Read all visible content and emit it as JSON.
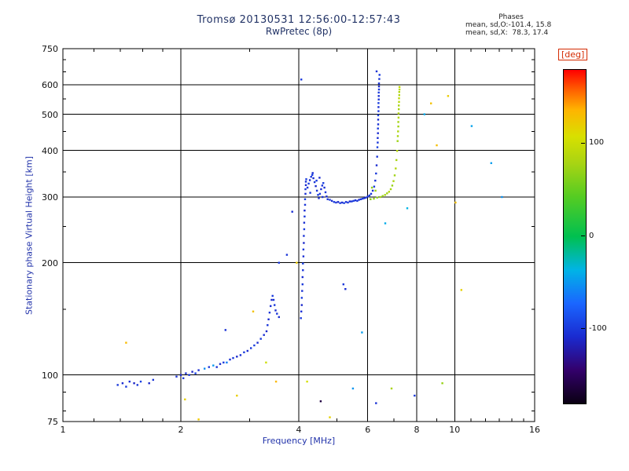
{
  "colors": {
    "background": "#ffffff",
    "axis": "#000000",
    "tick_text": "#101010",
    "title_text": "#223366",
    "axis_label_text": "#2233aa",
    "stats_text": "#202020",
    "deg_label": "#d42a00"
  },
  "chart_data": {
    "type": "scatter",
    "title": "Tromsø 20130531 12:56:00-12:57:43",
    "subtitle": "RwPretec (8p)",
    "stats": {
      "heading": "Phases",
      "line_o": "mean, sd,O:-101.4, 15.8",
      "line_x": "mean, sd,X:  78.3, 17.4"
    },
    "xlabel": "Frequency [MHz]",
    "ylabel": "Stationary phase Virtual Height [km]",
    "xscale": "log",
    "yscale": "log",
    "xlim": [
      1,
      16
    ],
    "ylim": [
      75,
      750
    ],
    "xticks": [
      1,
      2,
      4,
      6,
      8,
      10,
      16
    ],
    "x_gridlines": [
      2,
      4,
      6,
      8,
      10
    ],
    "x_minor_ticks": [
      1.2,
      1.4,
      1.6,
      1.8,
      3,
      5,
      7,
      9,
      11,
      12,
      13,
      14,
      15
    ],
    "yticks": [
      75,
      100,
      200,
      300,
      400,
      500,
      600,
      750
    ],
    "y_gridlines": [
      100,
      200,
      300,
      400,
      500,
      600
    ],
    "y_minor_ticks": [
      80,
      90,
      150,
      250,
      350,
      450,
      550,
      650,
      700
    ],
    "grid": true,
    "legend": "none",
    "colorbar": {
      "label": "[deg]",
      "ticks": [
        100,
        0,
        -100
      ],
      "range": [
        -180,
        180
      ],
      "position": "right"
    },
    "colormap": [
      [
        0.0,
        "#0a0012"
      ],
      [
        0.1,
        "#33006b"
      ],
      [
        0.2,
        "#1a2bd0"
      ],
      [
        0.3,
        "#1a66ff"
      ],
      [
        0.4,
        "#00b4e6"
      ],
      [
        0.5,
        "#00c050"
      ],
      [
        0.62,
        "#55cc22"
      ],
      [
        0.72,
        "#a8d413"
      ],
      [
        0.8,
        "#d8e000"
      ],
      [
        0.88,
        "#ffb400"
      ],
      [
        0.94,
        "#ff6000"
      ],
      [
        1.0,
        "#ff0000"
      ]
    ],
    "point_format": [
      "frequency_MHz",
      "virtual_height_km",
      "phase_deg"
    ],
    "points": [
      [
        1.38,
        94,
        -100
      ],
      [
        1.42,
        95,
        -108
      ],
      [
        1.45,
        93,
        -98
      ],
      [
        1.48,
        96,
        -105
      ],
      [
        1.52,
        95,
        -112
      ],
      [
        1.55,
        94,
        -100
      ],
      [
        1.58,
        96,
        -95
      ],
      [
        1.66,
        95,
        -110
      ],
      [
        1.7,
        97,
        -102
      ],
      [
        1.95,
        99,
        -104
      ],
      [
        2.0,
        100,
        -110
      ],
      [
        2.03,
        98,
        -98
      ],
      [
        2.06,
        101,
        -106
      ],
      [
        2.1,
        100,
        -100
      ],
      [
        2.14,
        102,
        -112
      ],
      [
        2.18,
        101,
        -95
      ],
      [
        2.22,
        103,
        -105
      ],
      [
        2.3,
        104,
        -55
      ],
      [
        2.36,
        105,
        -100
      ],
      [
        2.42,
        106,
        -48
      ],
      [
        2.47,
        105,
        -104
      ],
      [
        2.52,
        107,
        -110
      ],
      [
        2.57,
        108,
        -98
      ],
      [
        2.62,
        108,
        -60
      ],
      [
        2.67,
        110,
        -106
      ],
      [
        2.72,
        111,
        -100
      ],
      [
        2.78,
        112,
        -110
      ],
      [
        2.84,
        113,
        -104
      ],
      [
        2.9,
        115,
        -98
      ],
      [
        2.96,
        116,
        -108
      ],
      [
        3.02,
        118,
        -102
      ],
      [
        3.08,
        120,
        -96
      ],
      [
        3.14,
        122,
        -108
      ],
      [
        3.2,
        125,
        -100
      ],
      [
        3.26,
        128,
        -106
      ],
      [
        3.31,
        131,
        -110
      ],
      [
        3.33,
        136,
        -102
      ],
      [
        3.35,
        141,
        -108
      ],
      [
        3.37,
        147,
        -100
      ],
      [
        3.39,
        153,
        -105
      ],
      [
        3.41,
        159,
        -110
      ],
      [
        3.43,
        163,
        -98
      ],
      [
        3.45,
        159,
        -104
      ],
      [
        3.47,
        154,
        -100
      ],
      [
        3.49,
        149,
        -108
      ],
      [
        3.52,
        146,
        -102
      ],
      [
        3.56,
        143,
        -106
      ],
      [
        4.05,
        142,
        -100
      ],
      [
        4.06,
        148,
        -106
      ],
      [
        4.07,
        154,
        -110
      ],
      [
        4.07,
        161,
        -98
      ],
      [
        4.08,
        168,
        -104
      ],
      [
        4.09,
        175,
        -100
      ],
      [
        4.09,
        183,
        -108
      ],
      [
        4.1,
        191,
        -102
      ],
      [
        4.1,
        199,
        -96
      ],
      [
        4.11,
        208,
        -106
      ],
      [
        4.11,
        217,
        -100
      ],
      [
        4.12,
        226,
        -110
      ],
      [
        4.12,
        236,
        -104
      ],
      [
        4.13,
        246,
        -98
      ],
      [
        4.13,
        256,
        -106
      ],
      [
        4.14,
        266,
        -100
      ],
      [
        4.14,
        276,
        -108
      ],
      [
        4.15,
        286,
        -102
      ],
      [
        4.15,
        296,
        -96
      ],
      [
        4.16,
        306,
        -106
      ],
      [
        4.16,
        315,
        -100
      ],
      [
        4.17,
        323,
        -108
      ],
      [
        4.17,
        330,
        -102
      ],
      [
        4.18,
        335,
        -98
      ],
      [
        4.21,
        318,
        -104
      ],
      [
        4.24,
        326,
        -98
      ],
      [
        4.27,
        333,
        -108
      ],
      [
        4.3,
        340,
        -102
      ],
      [
        4.33,
        344,
        -96
      ],
      [
        4.36,
        337,
        -106
      ],
      [
        4.39,
        329,
        -100
      ],
      [
        4.42,
        321,
        -110
      ],
      [
        4.45,
        312,
        -104
      ],
      [
        4.48,
        304,
        -98
      ],
      [
        4.5,
        298,
        -106
      ],
      [
        4.53,
        306,
        -100
      ],
      [
        4.56,
        315,
        -108
      ],
      [
        4.59,
        322,
        -102
      ],
      [
        4.62,
        327,
        -96
      ],
      [
        4.65,
        318,
        -106
      ],
      [
        4.68,
        309,
        -100
      ],
      [
        4.71,
        301,
        -108
      ],
      [
        4.74,
        296,
        -102
      ],
      [
        4.28,
        308,
        -100
      ],
      [
        4.34,
        348,
        -105
      ],
      [
        4.44,
        332,
        -98
      ],
      [
        4.52,
        338,
        -108
      ],
      [
        4.6,
        300,
        -104
      ],
      [
        4.8,
        295,
        -100
      ],
      [
        4.86,
        293,
        -106
      ],
      [
        4.92,
        291,
        -98
      ],
      [
        4.98,
        290,
        -104
      ],
      [
        5.04,
        291,
        -110
      ],
      [
        5.1,
        289,
        -100
      ],
      [
        5.16,
        290,
        -106
      ],
      [
        5.22,
        289,
        -96
      ],
      [
        5.28,
        291,
        -104
      ],
      [
        5.34,
        290,
        -100
      ],
      [
        5.4,
        292,
        -108
      ],
      [
        5.46,
        292,
        -102
      ],
      [
        5.52,
        293,
        -96
      ],
      [
        5.58,
        294,
        -106
      ],
      [
        5.64,
        293,
        -100
      ],
      [
        5.7,
        295,
        -108
      ],
      [
        5.76,
        296,
        -102
      ],
      [
        5.82,
        297,
        -96
      ],
      [
        5.88,
        298,
        -106
      ],
      [
        5.94,
        299,
        -100
      ],
      [
        6.0,
        301,
        -104
      ],
      [
        6.06,
        303,
        -98
      ],
      [
        6.12,
        306,
        -102
      ],
      [
        6.18,
        312,
        -106
      ],
      [
        6.23,
        320,
        -98
      ],
      [
        6.27,
        332,
        -104
      ],
      [
        6.3,
        347,
        -100
      ],
      [
        6.32,
        365,
        -108
      ],
      [
        6.34,
        385,
        -102
      ],
      [
        6.35,
        408,
        -96
      ],
      [
        6.36,
        420,
        -100
      ],
      [
        6.36,
        432,
        -106
      ],
      [
        6.37,
        445,
        -108
      ],
      [
        6.37,
        458,
        -100
      ],
      [
        6.38,
        470,
        -104
      ],
      [
        6.38,
        484,
        -108
      ],
      [
        6.38,
        497,
        -96
      ],
      [
        6.39,
        510,
        -102
      ],
      [
        6.39,
        523,
        -106
      ],
      [
        6.39,
        536,
        -96
      ],
      [
        6.4,
        548,
        -104
      ],
      [
        6.4,
        560,
        -106
      ],
      [
        6.4,
        572,
        -98
      ],
      [
        6.41,
        583,
        -100
      ],
      [
        6.41,
        594,
        -108
      ],
      [
        6.41,
        605,
        -102
      ],
      [
        6.42,
        622,
        -102
      ],
      [
        6.43,
        638,
        -98
      ],
      [
        6.32,
        652,
        -104
      ],
      [
        6.1,
        296,
        66
      ],
      [
        6.22,
        297,
        74
      ],
      [
        6.34,
        299,
        70
      ],
      [
        6.46,
        300,
        78
      ],
      [
        6.55,
        302,
        72
      ],
      [
        6.64,
        304,
        80
      ],
      [
        6.72,
        307,
        76
      ],
      [
        6.8,
        310,
        84
      ],
      [
        6.87,
        315,
        78
      ],
      [
        6.93,
        322,
        72
      ],
      [
        6.98,
        331,
        82
      ],
      [
        7.03,
        343,
        76
      ],
      [
        7.07,
        358,
        85
      ],
      [
        7.1,
        377,
        79
      ],
      [
        7.13,
        399,
        88
      ],
      [
        7.15,
        424,
        74
      ],
      [
        7.16,
        437,
        80
      ],
      [
        7.17,
        450,
        82
      ],
      [
        7.18,
        464,
        76
      ],
      [
        7.18,
        477,
        78
      ],
      [
        7.19,
        490,
        84
      ],
      [
        7.19,
        503,
        86
      ],
      [
        7.2,
        516,
        78
      ],
      [
        7.2,
        528,
        80
      ],
      [
        7.21,
        540,
        88
      ],
      [
        7.21,
        552,
        92
      ],
      [
        7.22,
        563,
        84
      ],
      [
        7.22,
        574,
        84
      ],
      [
        7.23,
        583,
        90
      ],
      [
        7.23,
        592,
        96
      ],
      [
        6.15,
        318,
        70
      ],
      [
        6.28,
        312,
        76
      ],
      [
        4.06,
        620,
        -100
      ],
      [
        1.45,
        122,
        132
      ],
      [
        2.05,
        86,
        118
      ],
      [
        2.22,
        76,
        124
      ],
      [
        2.78,
        88,
        120
      ],
      [
        3.06,
        148,
        128
      ],
      [
        3.3,
        108,
        102
      ],
      [
        3.5,
        96,
        134
      ],
      [
        3.56,
        200,
        -100
      ],
      [
        3.73,
        210,
        -102
      ],
      [
        3.85,
        274,
        -106
      ],
      [
        3.95,
        200,
        122
      ],
      [
        4.2,
        96,
        106
      ],
      [
        4.55,
        85,
        -160
      ],
      [
        4.8,
        77,
        118
      ],
      [
        5.2,
        175,
        -100
      ],
      [
        5.26,
        170,
        -106
      ],
      [
        5.8,
        130,
        -46
      ],
      [
        6.3,
        84,
        -104
      ],
      [
        6.65,
        255,
        -40
      ],
      [
        7.57,
        280,
        -36
      ],
      [
        8.37,
        500,
        -42
      ],
      [
        8.7,
        535,
        128
      ],
      [
        9.0,
        413,
        130
      ],
      [
        9.62,
        560,
        122
      ],
      [
        10.05,
        290,
        128
      ],
      [
        10.4,
        169,
        118
      ],
      [
        11.05,
        465,
        -44
      ],
      [
        12.4,
        370,
        -46
      ],
      [
        13.2,
        300,
        -52
      ],
      [
        9.3,
        95,
        72
      ],
      [
        7.9,
        88,
        -100
      ],
      [
        5.5,
        92,
        -50
      ],
      [
        6.9,
        92,
        80
      ],
      [
        2.6,
        132,
        -104
      ]
    ]
  }
}
